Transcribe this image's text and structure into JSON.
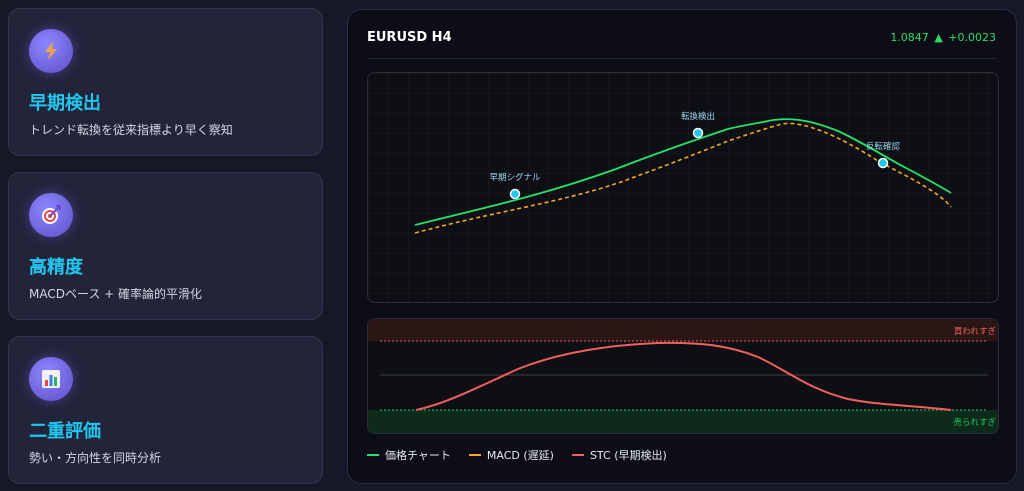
{
  "cards": [
    {
      "icon": "lightning-icon",
      "title": "早期検出",
      "desc": "トレンド転換を従来指標より早く察知"
    },
    {
      "icon": "target-icon",
      "title": "高精度",
      "desc": "MACDベース + 確率論的平滑化"
    },
    {
      "icon": "bar-chart-icon",
      "title": "二重評価",
      "desc": "勢い・方向性を同時分析"
    }
  ],
  "panel": {
    "title": "EURUSD H4",
    "price": "1.0847",
    "arrow": "▲",
    "change": "+0.0023"
  },
  "chart_data": [
    {
      "type": "line",
      "series": [
        {
          "name": "価格チャート",
          "color": "#22e36b",
          "style": "solid"
        },
        {
          "name": "MACD (遅延)",
          "color": "#f5a623",
          "style": "dashed"
        }
      ],
      "annotations": [
        "早期シグナル",
        "転換検出",
        "反転確認"
      ],
      "grid": true
    },
    {
      "type": "line",
      "series": [
        {
          "name": "STC (早期検出)",
          "color": "#f25f5c",
          "style": "solid"
        }
      ],
      "levels": [
        {
          "label": "買われすぎ",
          "color": "#f25f5c"
        },
        {
          "label": "売られすぎ",
          "color": "#22c55e"
        }
      ]
    }
  ],
  "legend": [
    {
      "label": "価格チャート",
      "color": "#22e36b"
    },
    {
      "label": "MACD (遅延)",
      "color": "#f5a623"
    },
    {
      "label": "STC (早期検出)",
      "color": "#f25f5c"
    }
  ]
}
